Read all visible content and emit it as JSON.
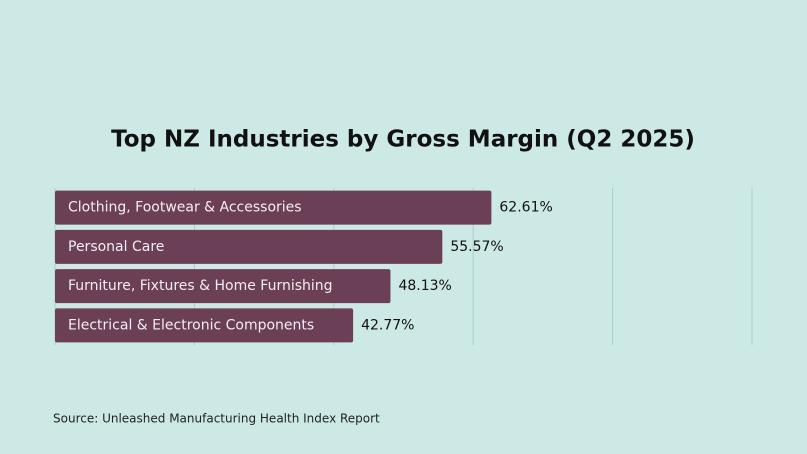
{
  "chart_data": {
    "type": "bar",
    "orientation": "horizontal",
    "title": "Top NZ Industries by Gross Margin (Q2 2025)",
    "categories": [
      "Clothing, Footwear & Accessories",
      "Personal Care",
      "Furniture, Fixtures & Home Furnishing",
      "Electrical & Electronic Components"
    ],
    "values": [
      62.61,
      55.57,
      48.13,
      42.77
    ],
    "value_labels": [
      "62.61%",
      "55.57%",
      "48.13%",
      "42.77%"
    ],
    "color": "#6b3f55",
    "xlim": [
      0,
      100
    ],
    "xticks": [
      0,
      20,
      40,
      60,
      80,
      100
    ],
    "grid": true,
    "source": "Source:  Unleashed Manufacturing Health Index Report"
  }
}
